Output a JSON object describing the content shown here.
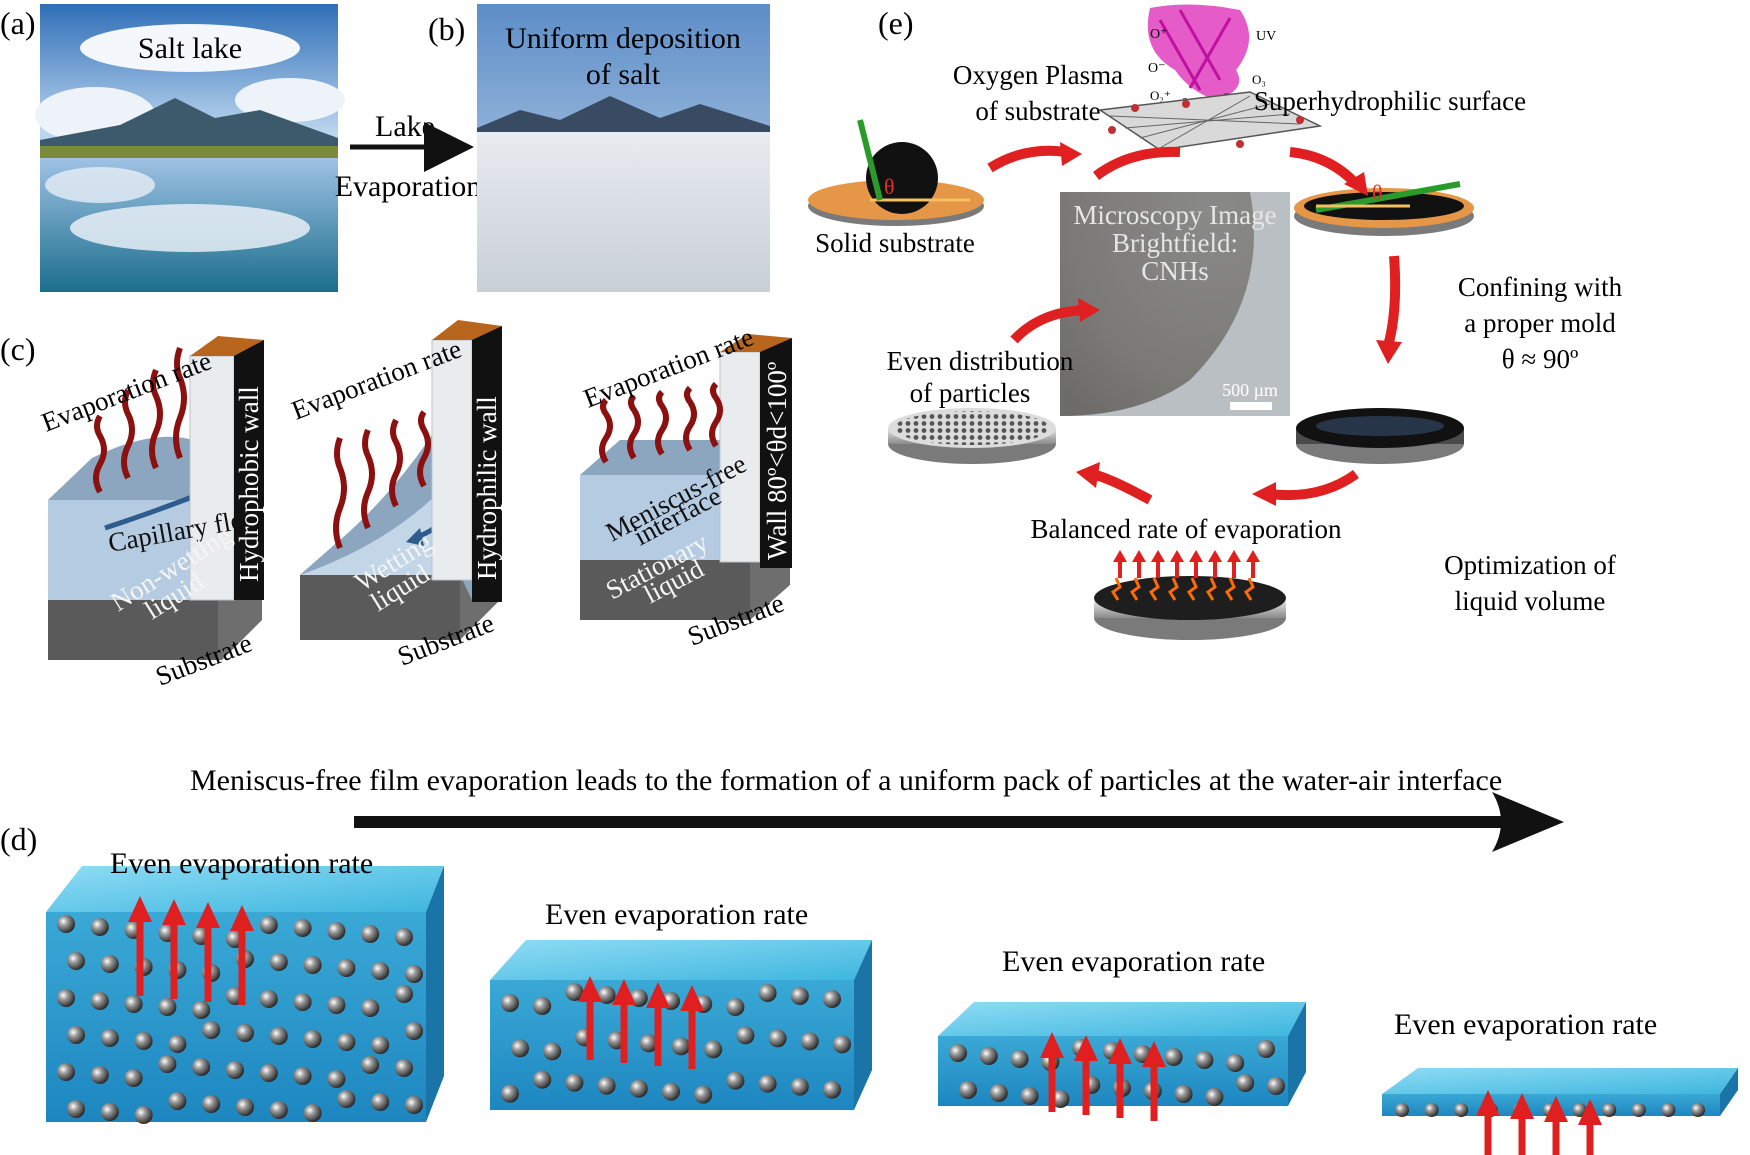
{
  "panels": {
    "a": {
      "tag": "(a)",
      "photo_label": "Salt lake"
    },
    "arrow_ab": {
      "line1": "Lake",
      "line2": "Evaporation"
    },
    "b": {
      "tag": "(b)",
      "photo_label_1": "Uniform deposition",
      "photo_label_2": "of salt"
    },
    "c": {
      "tag": "(c)",
      "blocks": [
        {
          "rate_label": "Evaporation rate",
          "wall_label": "Hydrophobic wall",
          "flow_label": "Capillary flow",
          "liquid_1": "Non-wetting",
          "liquid_2": "liquid",
          "substrate_label": "Substrate"
        },
        {
          "rate_label": "Evaporation rate",
          "wall_label": "Hydrophilic wall",
          "liquid_1": "Wetting",
          "liquid_2": "liquid",
          "substrate_label": "Substrate"
        },
        {
          "rate_label": "Evaporation rate",
          "wall_label": "Wall 80º<θd<100º",
          "interface_1": "Meniscus-free",
          "interface_2": "interface",
          "liquid_1": "Stationary",
          "liquid_2": "liquid",
          "substrate_label": "Substrate"
        }
      ]
    },
    "d": {
      "tag": "(d)",
      "headline": "Meniscus-free film evaporation leads to the formation of a uniform pack of particles at the water-air interface",
      "stage_label": "Even evaporation rate"
    },
    "e": {
      "tag": "(e)",
      "plasma_1": "Oxygen Plasma",
      "plasma_2": "of substrate",
      "superhydrophilic": "Superhydrophilic surface",
      "solid_substrate": "Solid substrate",
      "theta": "θ",
      "confining_1": "Confining with",
      "confining_2": "a proper mold",
      "confining_3": "θ ≈ 90º",
      "even_dist_1": "Even distribution",
      "even_dist_2": "of particles",
      "balanced": "Balanced rate of evaporation",
      "optimization_1": "Optimization of",
      "optimization_2": "liquid volume",
      "micro_1": "Microscopy Image",
      "micro_2": "Brightfield:",
      "micro_3": "CNHs",
      "scale": "500 µm",
      "uv": "UV",
      "ions": [
        "O⁺",
        "O⁻",
        "O₂⁺",
        "e",
        "O₂",
        "O₃"
      ]
    }
  },
  "colors": {
    "arrow_red": "#e02020",
    "wave_red": "#8b1010",
    "water": "#3fb7e0",
    "wall_brown": "#b8661e",
    "plasma": "#e040c0"
  }
}
